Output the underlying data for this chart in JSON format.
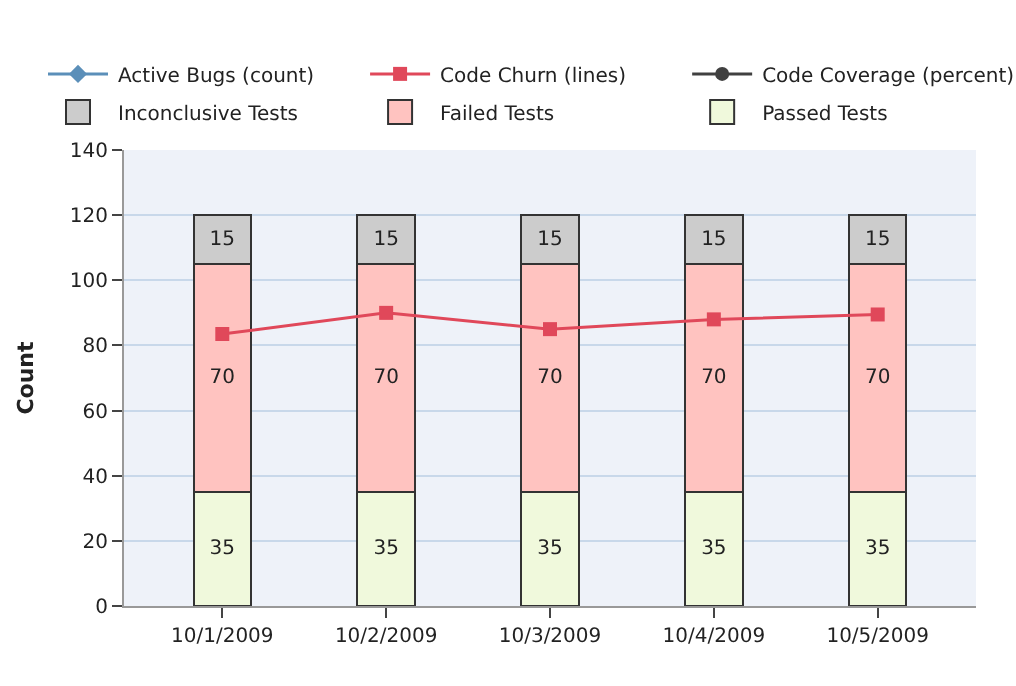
{
  "chart_data": {
    "type": "bar",
    "stacked": true,
    "ylabel": "Count",
    "categories": [
      "10/1/2009",
      "10/2/2009",
      "10/3/2009",
      "10/4/2009",
      "10/5/2009"
    ],
    "series": [
      {
        "name": "Passed Tests",
        "color": "#f0f9dc",
        "values": [
          35,
          35,
          35,
          35,
          35
        ],
        "value_labels": [
          "35",
          "35",
          "35",
          "35",
          "35"
        ]
      },
      {
        "name": "Failed Tests",
        "color": "#ffc3c0",
        "values": [
          70,
          70,
          70,
          70,
          70
        ],
        "value_labels": [
          "70",
          "70",
          "70",
          "70",
          "70"
        ]
      },
      {
        "name": "Inconclusive Tests",
        "color": "#cccccc",
        "values": [
          15,
          15,
          15,
          15,
          15
        ],
        "value_labels": [
          "15",
          "15",
          "15",
          "15",
          "15"
        ]
      },
      {
        "name": "Active Bugs (count)",
        "type": "line",
        "color": "#5b8fb9",
        "marker": "diamond",
        "values": [
          null,
          null,
          null,
          null,
          null
        ]
      },
      {
        "name": "Code Churn (lines)",
        "type": "line",
        "color": "#e0485a",
        "marker": "square",
        "values": [
          83.5,
          90,
          85,
          88,
          89.5
        ]
      },
      {
        "name": "Code Coverage (percent)",
        "type": "line",
        "color": "#404040",
        "marker": "circle",
        "values": [
          null,
          null,
          null,
          null,
          null
        ]
      }
    ],
    "ylim": [
      0,
      140
    ],
    "yticks": [
      0,
      20,
      40,
      60,
      80,
      100,
      120,
      140
    ],
    "grid": "y",
    "legend": "top"
  }
}
